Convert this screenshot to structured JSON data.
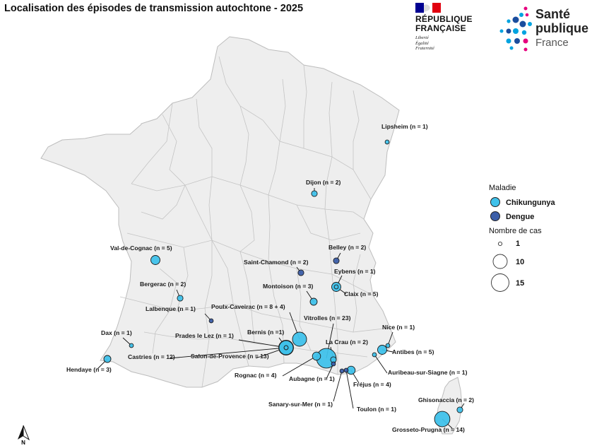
{
  "title": "Localisation des épisodes de transmission autochtone - 2025",
  "logos": {
    "republique": {
      "line1": "RÉPUBLIQUE",
      "line2": "FRANÇAISE",
      "motto1": "Liberté",
      "motto2": "Égalité",
      "motto3": "Fraternité",
      "colors": [
        "#000091",
        "#ffffff",
        "#e1000f"
      ]
    },
    "spf": {
      "line1": "Santé",
      "line2": "publique",
      "line3": "France",
      "colors": [
        "#1a4d9e",
        "#00a3e0",
        "#e6007e"
      ]
    }
  },
  "legend": {
    "disease_title": "Maladie",
    "diseases": [
      {
        "name": "Chikungunya",
        "color": "#3fc1ea"
      },
      {
        "name": "Dengue",
        "color": "#3c5ea8"
      }
    ],
    "size_title": "Nombre de cas",
    "sizes": [
      "1",
      "10",
      "15"
    ]
  },
  "map": {
    "land_color": "#eeeeee",
    "border_color": "#c4c4c4",
    "points": [
      {
        "label": "Lipsheim (n = 1)",
        "disease": "Chikungunya",
        "cases": 1
      },
      {
        "label": "Dijon (n = 2)",
        "disease": "Chikungunya",
        "cases": 2
      },
      {
        "label": "Val-de-Cognac (n = 5)",
        "disease": "Chikungunya",
        "cases": 5
      },
      {
        "label": "Belley (n = 2)",
        "disease": "Dengue",
        "cases": 2
      },
      {
        "label": "Saint-Chamond (n = 2)",
        "disease": "Dengue",
        "cases": 2
      },
      {
        "label": "Eybens (n = 1)",
        "disease": "Chikungunya",
        "cases": 1
      },
      {
        "label": "Bergerac (n = 2)",
        "disease": "Chikungunya",
        "cases": 2
      },
      {
        "label": "Montoison (n = 3)",
        "disease": "Chikungunya",
        "cases": 3
      },
      {
        "label": "Claix (n = 5)",
        "disease": "Chikungunya",
        "cases": 5
      },
      {
        "label": "Lalbenque (n = 1)",
        "disease": "Dengue",
        "cases": 1
      },
      {
        "label": "Poulx-Caveirac (n = 8 + 4)",
        "disease": "Chikungunya",
        "cases": 12
      },
      {
        "label": "Vitrolles (n = 23)",
        "disease": "Chikungunya",
        "cases": 23
      },
      {
        "label": "Prades le Lez (n = 1)",
        "disease": "Chikungunya",
        "cases": 1
      },
      {
        "label": "Bernis (n =1)",
        "disease": "Chikungunya",
        "cases": 1
      },
      {
        "label": "La Crau (n = 2)",
        "disease": "Chikungunya",
        "cases": 2
      },
      {
        "label": "Nice (n = 1)",
        "disease": "Chikungunya",
        "cases": 1
      },
      {
        "label": "Dax (n = 1)",
        "disease": "Chikungunya",
        "cases": 1
      },
      {
        "label": "Antibes (n = 5)",
        "disease": "Chikungunya",
        "cases": 5
      },
      {
        "label": "Castries (n = 12)",
        "disease": "Chikungunya",
        "cases": 12
      },
      {
        "label": "Salon-de-Provence (n = 13)",
        "disease": "Chikungunya",
        "cases": 13
      },
      {
        "label": "Hendaye (n = 3)",
        "disease": "Chikungunya",
        "cases": 3
      },
      {
        "label": "Auribeau-sur-Siagne (n = 1)",
        "disease": "Chikungunya",
        "cases": 1
      },
      {
        "label": "Rognac (n = 4)",
        "disease": "Chikungunya",
        "cases": 4
      },
      {
        "label": "Aubagne (n = 1)",
        "disease": "Dengue",
        "cases": 1
      },
      {
        "label": "Fréjus (n = 4)",
        "disease": "Chikungunya",
        "cases": 4
      },
      {
        "label": "Ghisonaccia (n = 2)",
        "disease": "Chikungunya",
        "cases": 2
      },
      {
        "label": "Sanary-sur-Mer (n = 1)",
        "disease": "Dengue",
        "cases": 1
      },
      {
        "label": "Toulon (n = 1)",
        "disease": "Dengue",
        "cases": 1
      },
      {
        "label": "Grosseto-Prugna (n = 14)",
        "disease": "Chikungunya",
        "cases": 14
      }
    ]
  },
  "north_arrow": "N"
}
